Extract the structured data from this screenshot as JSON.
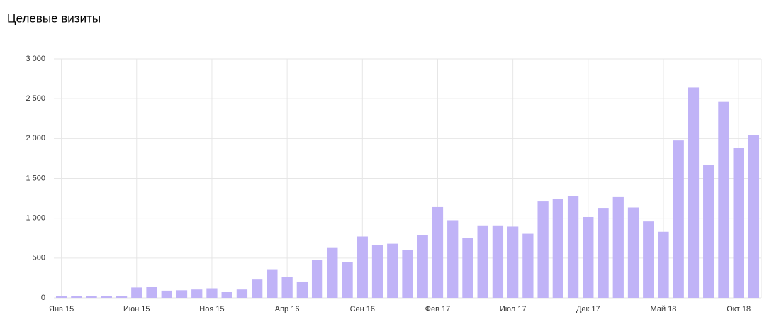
{
  "chart_data": {
    "type": "bar",
    "title": "Целевые визиты",
    "categories": [
      "Янв 15",
      null,
      null,
      null,
      null,
      "Июн 15",
      null,
      null,
      null,
      null,
      "Ноя 15",
      null,
      null,
      null,
      null,
      "Апр 16",
      null,
      null,
      null,
      null,
      "Сен 16",
      null,
      null,
      null,
      null,
      "Фев 17",
      null,
      null,
      null,
      null,
      "Июл 17",
      null,
      null,
      null,
      null,
      "Дек 17",
      null,
      null,
      null,
      null,
      "Май 18",
      null,
      null,
      null,
      null,
      "Окт 18",
      null
    ],
    "values": [
      20,
      20,
      20,
      20,
      20,
      130,
      140,
      90,
      95,
      105,
      120,
      80,
      105,
      230,
      360,
      265,
      205,
      480,
      635,
      450,
      770,
      665,
      680,
      600,
      785,
      1140,
      975,
      750,
      910,
      910,
      895,
      805,
      1210,
      1240,
      1275,
      1015,
      1130,
      1265,
      1135,
      960,
      830,
      1975,
      2640,
      1665,
      2460,
      1885,
      2045
    ],
    "color": "#c0b3f7",
    "ylim": [
      0,
      3000
    ],
    "yticks": [
      0,
      500,
      {
        "value": 1000,
        "label": "1 000"
      },
      {
        "value": 1500,
        "label": "1 500"
      },
      {
        "value": 2000,
        "label": "2 000"
      },
      {
        "value": 2500,
        "label": "2 500"
      },
      {
        "value": 3000,
        "label": "3 000"
      }
    ],
    "grid": true
  }
}
